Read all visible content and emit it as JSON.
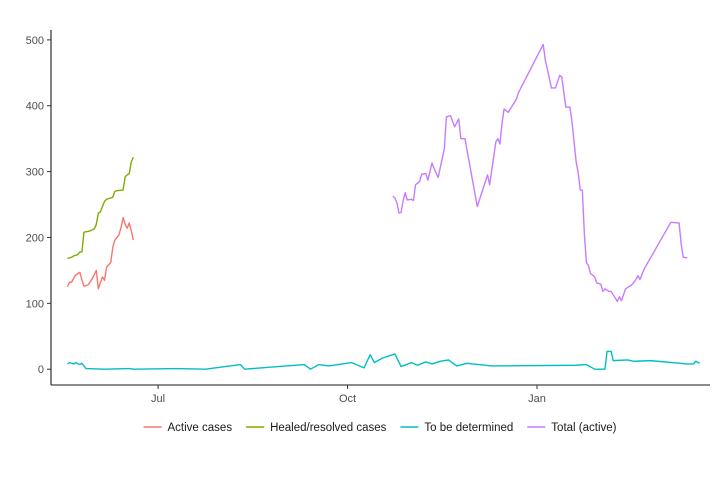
{
  "chart_data": {
    "type": "line",
    "title": "",
    "xlabel": "",
    "ylabel": "",
    "x_axis": {
      "type": "date",
      "range": [
        "2020-05-10",
        "2021-03-26"
      ],
      "ticks": [
        {
          "date": "2020-07-01",
          "label": "Jul"
        },
        {
          "date": "2020-10-01",
          "label": "Oct"
        },
        {
          "date": "2021-01-01",
          "label": "Jan"
        }
      ]
    },
    "y_axis": {
      "range": [
        -24,
        515
      ],
      "ticks": [
        0,
        100,
        200,
        300,
        400,
        500
      ]
    },
    "grid": false,
    "legend_position": "bottom",
    "series": [
      {
        "name": "Active cases",
        "color": "#F8766D",
        "points": [
          [
            "2020-05-18",
            125
          ],
          [
            "2020-05-19",
            132
          ],
          [
            "2020-05-20",
            132
          ],
          [
            "2020-05-21",
            138
          ],
          [
            "2020-05-22",
            143
          ],
          [
            "2020-05-24",
            147
          ],
          [
            "2020-05-25",
            136
          ],
          [
            "2020-05-26",
            126
          ],
          [
            "2020-05-28",
            128
          ],
          [
            "2020-05-30",
            137
          ],
          [
            "2020-06-01",
            150
          ],
          [
            "2020-06-02",
            122
          ],
          [
            "2020-06-03",
            132
          ],
          [
            "2020-06-04",
            140
          ],
          [
            "2020-06-05",
            135
          ],
          [
            "2020-06-06",
            155
          ],
          [
            "2020-06-08",
            162
          ],
          [
            "2020-06-09",
            185
          ],
          [
            "2020-06-10",
            196
          ],
          [
            "2020-06-12",
            204
          ],
          [
            "2020-06-13",
            215
          ],
          [
            "2020-06-14",
            230
          ],
          [
            "2020-06-15",
            220
          ],
          [
            "2020-06-16",
            214
          ],
          [
            "2020-06-17",
            222
          ],
          [
            "2020-06-18",
            210
          ],
          [
            "2020-06-19",
            196
          ]
        ]
      },
      {
        "name": "Healed/resolved cases",
        "color": "#7CAE00",
        "points": [
          [
            "2020-05-18",
            168
          ],
          [
            "2020-05-20",
            170
          ],
          [
            "2020-05-21",
            172
          ],
          [
            "2020-05-23",
            174
          ],
          [
            "2020-05-24",
            178
          ],
          [
            "2020-05-25",
            178
          ],
          [
            "2020-05-26",
            208
          ],
          [
            "2020-05-29",
            210
          ],
          [
            "2020-05-31",
            213
          ],
          [
            "2020-06-01",
            220
          ],
          [
            "2020-06-02",
            237
          ],
          [
            "2020-06-03",
            239
          ],
          [
            "2020-06-05",
            255
          ],
          [
            "2020-06-06",
            258
          ],
          [
            "2020-06-07",
            259
          ],
          [
            "2020-06-09",
            261
          ],
          [
            "2020-06-10",
            270
          ],
          [
            "2020-06-11",
            271
          ],
          [
            "2020-06-14",
            272
          ],
          [
            "2020-06-15",
            292
          ],
          [
            "2020-06-16",
            295
          ],
          [
            "2020-06-17",
            297
          ],
          [
            "2020-06-18",
            315
          ],
          [
            "2020-06-19",
            322
          ]
        ]
      },
      {
        "name": "To be determined",
        "color": "#00BFC4",
        "points": [
          [
            "2020-05-18",
            8
          ],
          [
            "2020-05-19",
            10
          ],
          [
            "2020-05-21",
            8
          ],
          [
            "2020-05-22",
            10
          ],
          [
            "2020-05-24",
            7
          ],
          [
            "2020-05-25",
            9
          ],
          [
            "2020-05-27",
            1
          ],
          [
            "2020-06-05",
            0
          ],
          [
            "2020-06-17",
            1
          ],
          [
            "2020-06-19",
            0
          ],
          [
            "2020-07-10",
            1
          ],
          [
            "2020-07-24",
            0
          ],
          [
            "2020-08-10",
            7
          ],
          [
            "2020-08-12",
            0
          ],
          [
            "2020-09-10",
            7
          ],
          [
            "2020-09-13",
            0
          ],
          [
            "2020-09-17",
            7
          ],
          [
            "2020-09-22",
            5
          ],
          [
            "2020-10-03",
            10
          ],
          [
            "2020-10-09",
            2
          ],
          [
            "2020-10-12",
            22
          ],
          [
            "2020-10-14",
            10
          ],
          [
            "2020-10-18",
            17
          ],
          [
            "2020-10-24",
            23
          ],
          [
            "2020-10-27",
            4
          ],
          [
            "2020-11-01",
            10
          ],
          [
            "2020-11-04",
            6
          ],
          [
            "2020-11-08",
            11
          ],
          [
            "2020-11-11",
            8
          ],
          [
            "2020-11-15",
            12
          ],
          [
            "2020-11-19",
            14
          ],
          [
            "2020-11-23",
            5
          ],
          [
            "2020-11-28",
            9
          ],
          [
            "2020-12-10",
            5
          ],
          [
            "2021-01-20",
            6
          ],
          [
            "2021-01-25",
            7
          ],
          [
            "2021-01-29",
            0
          ],
          [
            "2021-02-03",
            0
          ],
          [
            "2021-02-04",
            27
          ],
          [
            "2021-02-06",
            27
          ],
          [
            "2021-02-07",
            13
          ],
          [
            "2021-02-14",
            14
          ],
          [
            "2021-02-17",
            12
          ],
          [
            "2021-02-25",
            13
          ],
          [
            "2021-03-15",
            8
          ],
          [
            "2021-03-18",
            8
          ],
          [
            "2021-03-19",
            12
          ],
          [
            "2021-03-21",
            9
          ]
        ]
      },
      {
        "name": "Total (active)",
        "color": "#C77CFF",
        "points": [
          [
            "2020-10-23",
            263
          ],
          [
            "2020-10-24",
            260
          ],
          [
            "2020-10-25",
            252
          ],
          [
            "2020-10-26",
            237
          ],
          [
            "2020-10-27",
            238
          ],
          [
            "2020-10-28",
            256
          ],
          [
            "2020-10-29",
            268
          ],
          [
            "2020-10-30",
            257
          ],
          [
            "2020-11-01",
            258
          ],
          [
            "2020-11-02",
            256
          ],
          [
            "2020-11-03",
            280
          ],
          [
            "2020-11-05",
            285
          ],
          [
            "2020-11-06",
            296
          ],
          [
            "2020-11-08",
            297
          ],
          [
            "2020-11-09",
            287
          ],
          [
            "2020-11-11",
            313
          ],
          [
            "2020-11-12",
            305
          ],
          [
            "2020-11-14",
            291
          ],
          [
            "2020-11-17",
            335
          ],
          [
            "2020-11-18",
            383
          ],
          [
            "2020-11-20",
            385
          ],
          [
            "2020-11-22",
            368
          ],
          [
            "2020-11-24",
            380
          ],
          [
            "2020-11-25",
            350
          ],
          [
            "2020-11-27",
            350
          ],
          [
            "2020-12-03",
            247
          ],
          [
            "2020-12-08",
            295
          ],
          [
            "2020-12-09",
            280
          ],
          [
            "2020-12-12",
            345
          ],
          [
            "2020-12-13",
            350
          ],
          [
            "2020-12-14",
            342
          ],
          [
            "2020-12-15",
            373
          ],
          [
            "2020-12-16",
            395
          ],
          [
            "2020-12-18",
            390
          ],
          [
            "2020-12-22",
            410
          ],
          [
            "2020-12-23",
            420
          ],
          [
            "2021-01-04",
            493
          ],
          [
            "2021-01-05",
            470
          ],
          [
            "2021-01-06",
            456
          ],
          [
            "2021-01-08",
            427
          ],
          [
            "2021-01-10",
            427
          ],
          [
            "2021-01-12",
            446
          ],
          [
            "2021-01-13",
            444
          ],
          [
            "2021-01-15",
            398
          ],
          [
            "2021-01-17",
            398
          ],
          [
            "2021-01-18",
            375
          ],
          [
            "2021-01-20",
            315
          ],
          [
            "2021-01-21",
            298
          ],
          [
            "2021-01-22",
            272
          ],
          [
            "2021-01-23",
            272
          ],
          [
            "2021-01-24",
            205
          ],
          [
            "2021-01-25",
            162
          ],
          [
            "2021-01-26",
            157
          ],
          [
            "2021-01-27",
            145
          ],
          [
            "2021-01-28",
            143
          ],
          [
            "2021-01-29",
            140
          ],
          [
            "2021-01-30",
            131
          ],
          [
            "2021-01-31",
            130
          ],
          [
            "2021-02-01",
            129
          ],
          [
            "2021-02-02",
            118
          ],
          [
            "2021-02-03",
            122
          ],
          [
            "2021-02-05",
            118
          ],
          [
            "2021-02-06",
            118
          ],
          [
            "2021-02-08",
            108
          ],
          [
            "2021-02-09",
            103
          ],
          [
            "2021-02-10",
            110
          ],
          [
            "2021-02-11",
            104
          ],
          [
            "2021-02-13",
            122
          ],
          [
            "2021-02-15",
            126
          ],
          [
            "2021-02-16",
            128
          ],
          [
            "2021-02-18",
            136
          ],
          [
            "2021-02-19",
            142
          ],
          [
            "2021-02-20",
            136
          ],
          [
            "2021-02-22",
            152
          ],
          [
            "2021-03-07",
            223
          ],
          [
            "2021-03-11",
            222
          ],
          [
            "2021-03-12",
            190
          ],
          [
            "2021-03-13",
            170
          ],
          [
            "2021-03-15",
            169
          ]
        ]
      }
    ]
  }
}
